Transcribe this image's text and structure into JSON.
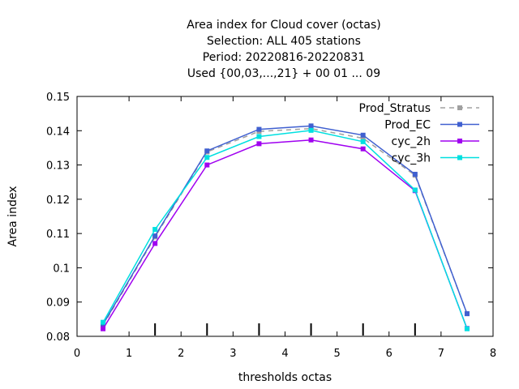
{
  "chart_data": {
    "type": "line",
    "title_lines": [
      "Area index  for Cloud cover (octas)",
      "Selection: ALL    405 stations",
      "Period: 20220816-20220831",
      "Used {00,03,...,21} + 00 01 ... 09"
    ],
    "xlabel": "thresholds octas",
    "ylabel": "Area index",
    "xlim": [
      0,
      8
    ],
    "ylim": [
      0.08,
      0.15
    ],
    "x_ticks": [
      "0",
      "1",
      "2",
      "3",
      "4",
      "5",
      "6",
      "7",
      "8"
    ],
    "y_ticks": [
      "0.08",
      "0.09",
      "0.1",
      "0.11",
      "0.12",
      "0.13",
      "0.14",
      "0.15"
    ],
    "x": [
      0.5,
      1.5,
      2.5,
      3.5,
      4.5,
      5.5,
      6.5,
      7.5
    ],
    "legend_position": "top-right",
    "grid": false,
    "threshold_markers_x": [
      1.5,
      2.5,
      3.5,
      4.5,
      5.5,
      6.5
    ],
    "series": [
      {
        "name": "Prod_Stratus",
        "color": "#a0a0a0",
        "dashed": true,
        "values": [
          0.0832,
          0.109,
          0.1338,
          0.1398,
          0.1406,
          0.1378,
          0.127,
          0.0866
        ]
      },
      {
        "name": "Prod_EC",
        "color": "#4060d0",
        "dashed": false,
        "values": [
          0.0835,
          0.1093,
          0.1341,
          0.1404,
          0.1414,
          0.1387,
          0.1273,
          0.0866
        ]
      },
      {
        "name": "cyc_2h",
        "color": "#a000f0",
        "dashed": false,
        "values": [
          0.0822,
          0.1071,
          0.13,
          0.1362,
          0.1373,
          0.1347,
          0.1225,
          0.0823
        ]
      },
      {
        "name": "cyc_3h",
        "color": "#00e0e0",
        "dashed": false,
        "values": [
          0.0841,
          0.1112,
          0.1322,
          0.1383,
          0.1401,
          0.1368,
          0.1227,
          0.0822
        ]
      }
    ]
  }
}
